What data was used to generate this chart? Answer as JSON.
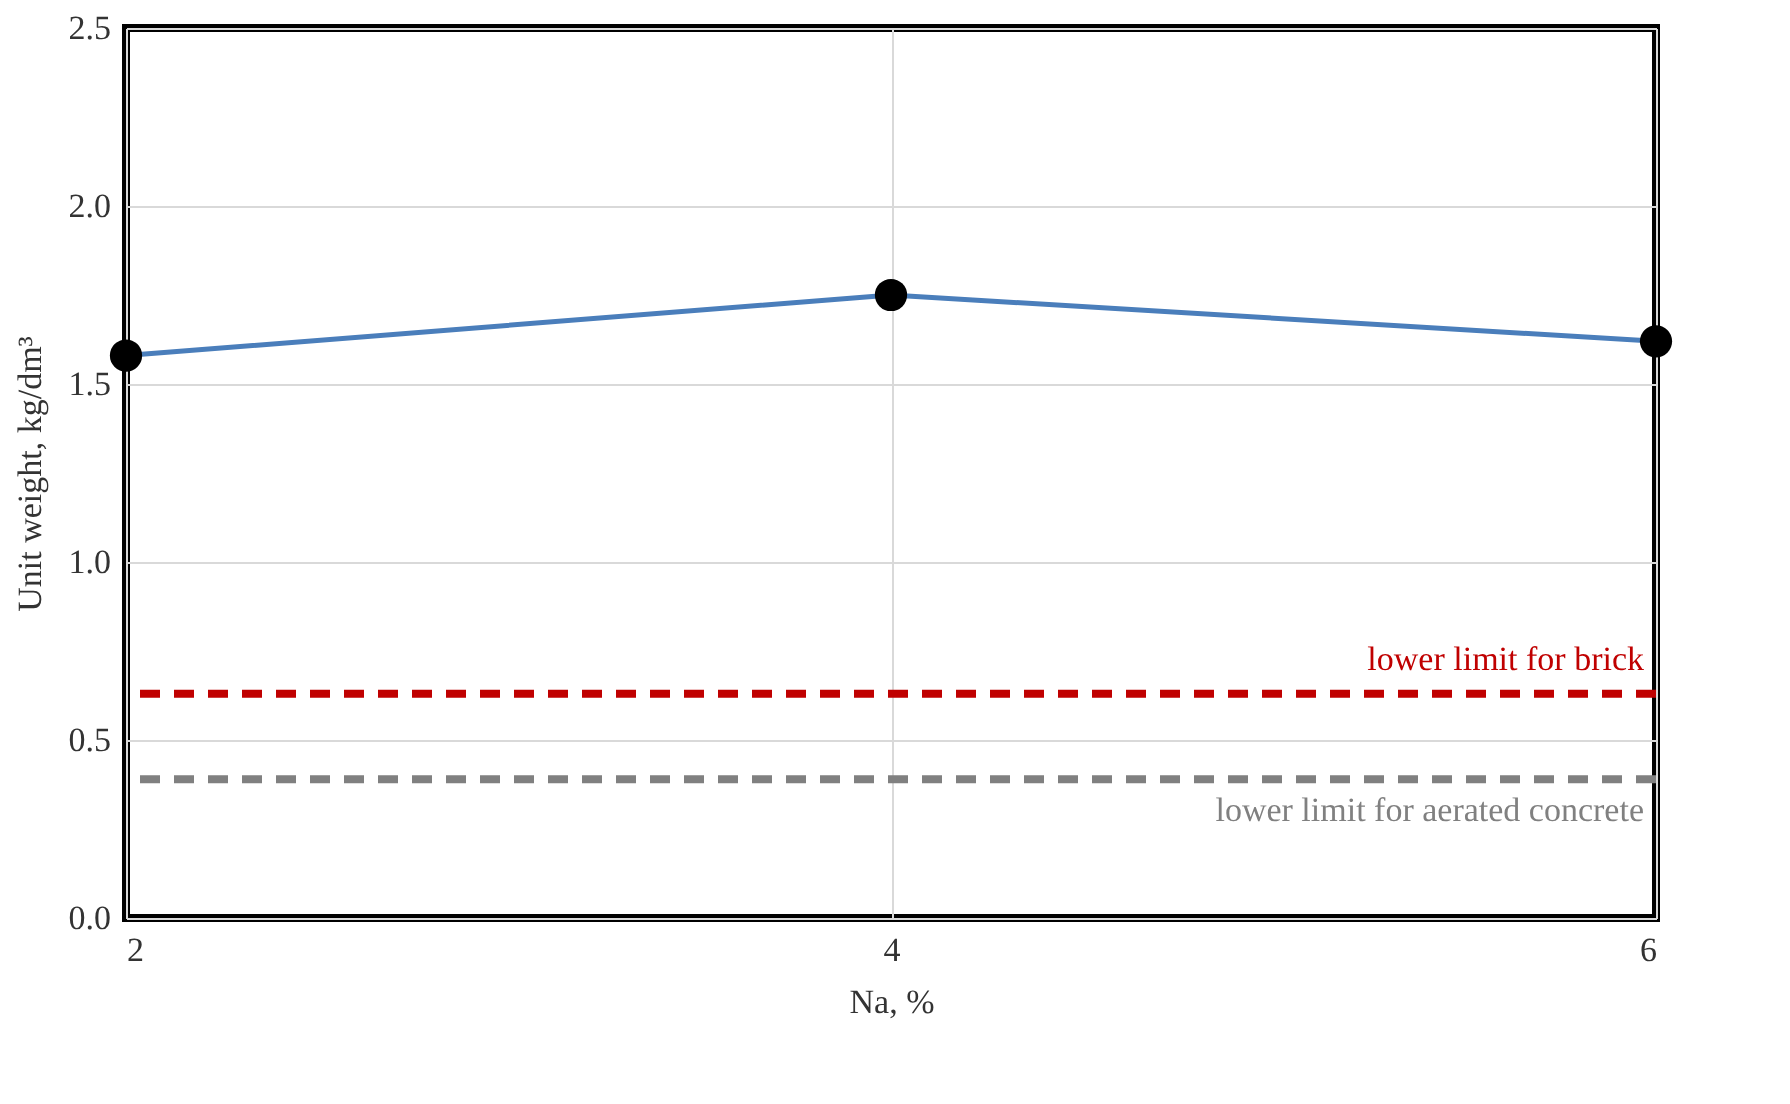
{
  "chart_data": {
    "type": "line",
    "xlabel": "Na, %",
    "ylabel": "Unit weight, kg/dm³",
    "x": [
      2,
      4,
      6
    ],
    "series": [
      {
        "color": "#4a7ebb",
        "values": [
          1.58,
          1.75,
          1.62
        ],
        "marker": "circle",
        "line_style": "solid"
      }
    ],
    "xlim": [
      2,
      6
    ],
    "xticks": [
      2,
      4,
      6
    ],
    "ylim": [
      0,
      2.5
    ],
    "yticks": [
      {
        "value": 0,
        "label": "0.0"
      },
      {
        "value": 0.5,
        "label": "0.5"
      },
      {
        "value": 1,
        "label": "1.0"
      },
      {
        "value": 1.5,
        "label": "1.5"
      },
      {
        "value": 2,
        "label": "2.0"
      },
      {
        "value": 2.5,
        "label": "2.5"
      }
    ],
    "ref_lines": [
      {
        "axis": "y",
        "value": 0.63,
        "label": "lower limit for brick",
        "color": "#c00000",
        "line_style": "dashed"
      },
      {
        "axis": "y",
        "value": 0.39,
        "label": "lower limit for aerated concrete",
        "color": "#808080",
        "line_style": "dashed"
      }
    ],
    "grid": true,
    "legend": false
  }
}
